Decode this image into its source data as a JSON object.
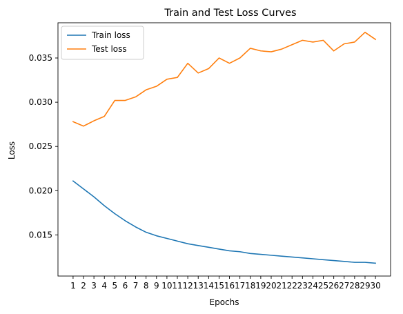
{
  "chart_data": {
    "type": "line",
    "title": "Train and Test Loss Curves",
    "xlabel": "Epochs",
    "ylabel": "Loss",
    "x": [
      1,
      2,
      3,
      4,
      5,
      6,
      7,
      8,
      9,
      10,
      11,
      12,
      13,
      14,
      15,
      16,
      17,
      18,
      19,
      20,
      21,
      22,
      23,
      24,
      25,
      26,
      27,
      28,
      29,
      30
    ],
    "xticks": [
      "1",
      "2",
      "3",
      "4",
      "5",
      "6",
      "7",
      "8",
      "9",
      "10",
      "11",
      "12",
      "13",
      "14",
      "15",
      "16",
      "17",
      "18",
      "19",
      "20",
      "21",
      "22",
      "23",
      "24",
      "25",
      "26",
      "27",
      "28",
      "29",
      "30"
    ],
    "yticks": [
      "0.015",
      "0.020",
      "0.025",
      "0.030",
      "0.035"
    ],
    "ytick_values": [
      0.015,
      0.02,
      0.025,
      0.03,
      0.035
    ],
    "xlim": [
      -0.45,
      31.45
    ],
    "ylim": [
      0.01035,
      0.03898
    ],
    "grid": false,
    "legend_position": "top-left",
    "series": [
      {
        "name": "Train loss",
        "color": "#1f77b4",
        "values": [
          0.0211,
          0.0202,
          0.0193,
          0.0183,
          0.0174,
          0.0166,
          0.0159,
          0.0153,
          0.0149,
          0.0146,
          0.0143,
          0.014,
          0.0138,
          0.0136,
          0.0134,
          0.0132,
          0.0131,
          0.0129,
          0.0128,
          0.0127,
          0.0126,
          0.0125,
          0.0124,
          0.0123,
          0.0122,
          0.0121,
          0.012,
          0.0119,
          0.0119,
          0.0118
        ]
      },
      {
        "name": "Test loss",
        "color": "#ff7f0e",
        "values": [
          0.0278,
          0.0273,
          0.0279,
          0.0284,
          0.0302,
          0.0302,
          0.0306,
          0.0314,
          0.0318,
          0.0326,
          0.0328,
          0.0344,
          0.0333,
          0.0338,
          0.035,
          0.0344,
          0.035,
          0.0361,
          0.0358,
          0.0357,
          0.036,
          0.0365,
          0.037,
          0.0368,
          0.037,
          0.0358,
          0.0366,
          0.0368,
          0.0379,
          0.0371
        ]
      }
    ]
  }
}
